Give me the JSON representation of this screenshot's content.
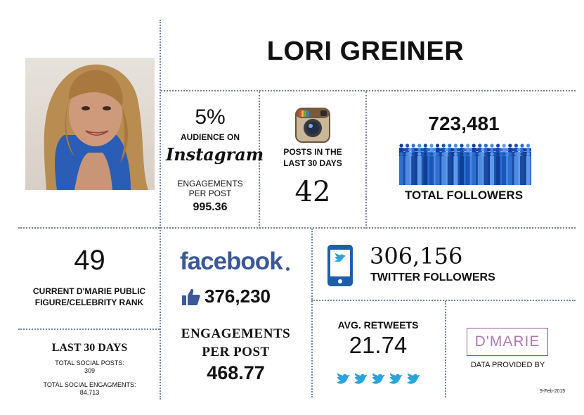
{
  "name": "LORI GREINER",
  "instagram": {
    "audience_percent": "5%",
    "audience_label": "AUDIENCE ON",
    "logo_text": "Instagram",
    "engagements_label": "ENGAGEMENTS PER POST",
    "engagements_value": "995.36",
    "posts_label": "POSTS IN THE LAST 30 DAYS",
    "posts_value": "42"
  },
  "followers": {
    "total_value": "723,481",
    "total_label": "TOTAL FOLLOWERS"
  },
  "rank": {
    "value": "49",
    "label": "CURRENT D'MARIE PUBLIC FIGURE/CELEBRITY RANK"
  },
  "last30": {
    "title": "LAST 30 DAYS",
    "posts_label": "TOTAL SOCIAL POSTS:",
    "posts_value": "309",
    "engagements_label": "TOTAL SOCIAL ENGAGMENTS:",
    "engagements_value": "84,713"
  },
  "facebook": {
    "logo_text": "facebook",
    "likes_value": "376,230",
    "engagements_label": "ENGAGEMENTS PER POST",
    "engagements_value": "468.77"
  },
  "twitter": {
    "followers_value": "306,156",
    "followers_label": "TWITTER FOLLOWERS",
    "retweets_label": "AVG. RETWEETS",
    "retweets_value": "21.74"
  },
  "brand": {
    "logo_text": "D'MARIE",
    "provided_label": "DATA PROVIDED BY",
    "date": "9-Feb-2015"
  },
  "colors": {
    "facebook_blue": "#3b5998",
    "twitter_blue": "#2aa3df",
    "followers_blue": "#1a55b8",
    "divider": "#6f84a6",
    "dmarie_purple": "#8e5a8e"
  }
}
